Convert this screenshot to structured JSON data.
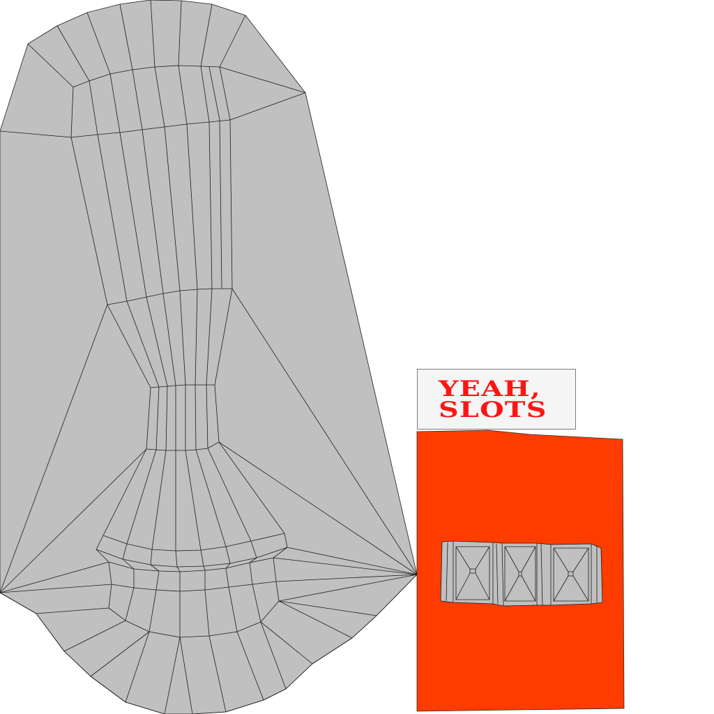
{
  "label": {
    "lines": [
      "YEAH,",
      "SLOTS"
    ]
  },
  "colors": {
    "background": "#ffffff",
    "mesh_fill": "#c0c0c0",
    "mesh_stroke": "#1a1a1a",
    "panel_fill": "#ff3c00",
    "label_text": "#ff1414",
    "label_box": "#f5f5f5"
  },
  "figures": {
    "mesh": "uv-mesh-layout",
    "slot_panel": "slot-machine-reels",
    "reel_count": 3
  }
}
